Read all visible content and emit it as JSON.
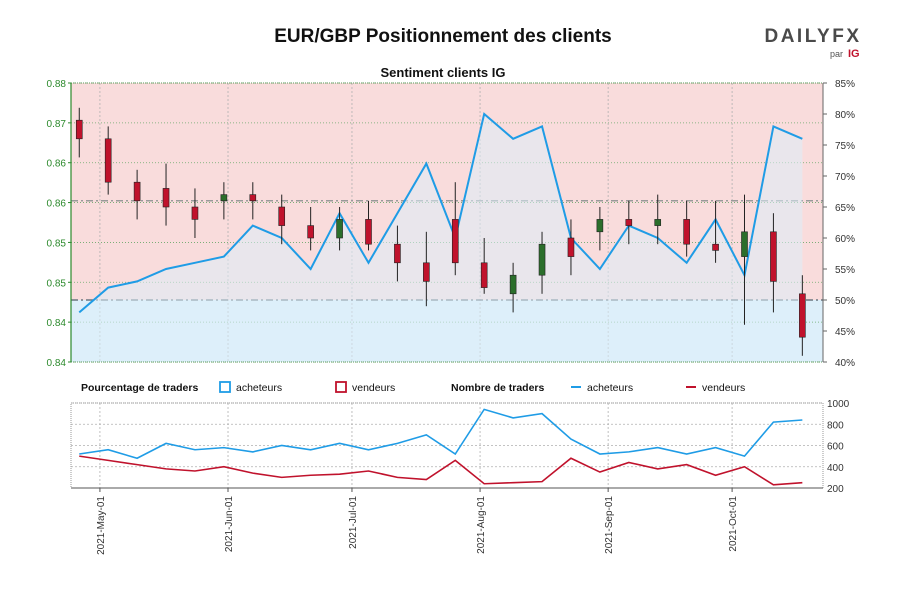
{
  "header": {
    "title": "EUR/GBP Positionnement des clients",
    "brand_name": "DAILYFX",
    "brand_sub": "par",
    "brand_ig": "IG"
  },
  "colors": {
    "price_up": "#2b6e2b",
    "price_down": "#c0122c",
    "buyers": "#1f9ce6",
    "sellers": "#c0122c",
    "short_zone": "#f9dcdc",
    "long_zone": "#ddeffa",
    "axis_green": "#2c8a2c",
    "grid": "#b0b0b0"
  },
  "chart_data": [
    {
      "type": "line",
      "title": "Sentiment clients IG",
      "ylim_price": [
        0.835,
        0.88
      ],
      "y_ticks_price": [
        "0.88",
        "0.87",
        "0.86",
        "0.86",
        "0.85",
        "0.85",
        "0.84",
        "0.84"
      ],
      "ylim_percent": [
        40,
        85
      ],
      "y_ticks_percent": [
        "85%",
        "80%",
        "75%",
        "70%",
        "65%",
        "60%",
        "55%",
        "50%",
        "45%",
        "40%"
      ],
      "reference_levels": {
        "price": 0.861,
        "percent": 50
      },
      "dates": [
        "2021-04-26",
        "2021-05-03",
        "2021-05-10",
        "2021-05-17",
        "2021-05-24",
        "2021-05-31",
        "2021-06-07",
        "2021-06-14",
        "2021-06-21",
        "2021-06-28",
        "2021-07-05",
        "2021-07-12",
        "2021-07-19",
        "2021-07-26",
        "2021-08-02",
        "2021-08-09",
        "2021-08-16",
        "2021-08-23",
        "2021-08-30",
        "2021-09-06",
        "2021-09-13",
        "2021-09-20",
        "2021-09-27",
        "2021-10-04",
        "2021-10-11",
        "2021-10-18"
      ],
      "series": [
        {
          "name": "acheteurs",
          "kind": "percent",
          "values": [
            48,
            52,
            53,
            55,
            56,
            57,
            62,
            60,
            55,
            64,
            56,
            64,
            72,
            60,
            80,
            76,
            78,
            60,
            55,
            62,
            60,
            56,
            63,
            54,
            78,
            76
          ]
        },
        {
          "name": "prix",
          "kind": "price",
          "values": [
            0.874,
            0.871,
            0.861,
            0.864,
            0.858,
            0.862,
            0.862,
            0.859,
            0.856,
            0.857,
            0.858,
            0.853,
            0.848,
            0.861,
            0.849,
            0.848,
            0.853,
            0.85,
            0.858,
            0.857,
            0.858,
            0.856,
            0.857,
            0.859,
            0.848,
            0.839
          ]
        }
      ],
      "candles": {
        "open": [
          0.874,
          0.871,
          0.864,
          0.863,
          0.86,
          0.861,
          0.862,
          0.86,
          0.857,
          0.855,
          0.858,
          0.854,
          0.851,
          0.858,
          0.851,
          0.846,
          0.849,
          0.855,
          0.856,
          0.858,
          0.857,
          0.858,
          0.854,
          0.852,
          0.856,
          0.846
        ],
        "high": [
          0.876,
          0.873,
          0.866,
          0.867,
          0.863,
          0.864,
          0.864,
          0.862,
          0.86,
          0.86,
          0.861,
          0.857,
          0.856,
          0.864,
          0.855,
          0.851,
          0.856,
          0.858,
          0.86,
          0.861,
          0.862,
          0.861,
          0.861,
          0.862,
          0.859,
          0.849
        ],
        "low": [
          0.868,
          0.862,
          0.858,
          0.857,
          0.855,
          0.858,
          0.858,
          0.854,
          0.853,
          0.853,
          0.853,
          0.848,
          0.844,
          0.849,
          0.846,
          0.843,
          0.846,
          0.849,
          0.853,
          0.854,
          0.854,
          0.852,
          0.851,
          0.841,
          0.843,
          0.836
        ],
        "close": [
          0.871,
          0.864,
          0.861,
          0.86,
          0.858,
          0.862,
          0.861,
          0.857,
          0.855,
          0.858,
          0.854,
          0.851,
          0.848,
          0.851,
          0.847,
          0.849,
          0.854,
          0.852,
          0.858,
          0.857,
          0.858,
          0.854,
          0.853,
          0.856,
          0.848,
          0.839
        ]
      },
      "legend": [
        {
          "title": "Pourcentage de traders",
          "items": [
            {
              "label": "acheteurs",
              "style": "box",
              "color": "#1f9ce6"
            },
            {
              "label": "vendeurs",
              "style": "box",
              "color": "#c0122c"
            }
          ]
        },
        {
          "title": "Nombre de traders",
          "items": [
            {
              "label": "acheteurs",
              "style": "line",
              "color": "#1f9ce6"
            },
            {
              "label": "vendeurs",
              "style": "line",
              "color": "#c0122c"
            }
          ]
        }
      ]
    },
    {
      "type": "line",
      "ylim": [
        200,
        1000
      ],
      "y_ticks": [
        "1000",
        "800",
        "600",
        "400",
        "200"
      ],
      "x_tick_labels": [
        "2021-May-01",
        "2021-Jun-01",
        "2021-Jul-01",
        "2021-Aug-01",
        "2021-Sep-01",
        "2021-Oct-01"
      ],
      "x_tick_dates": [
        "2021-05-01",
        "2021-06-01",
        "2021-07-01",
        "2021-08-01",
        "2021-09-01",
        "2021-10-01"
      ],
      "dates": [
        "2021-04-26",
        "2021-05-03",
        "2021-05-10",
        "2021-05-17",
        "2021-05-24",
        "2021-05-31",
        "2021-06-07",
        "2021-06-14",
        "2021-06-21",
        "2021-06-28",
        "2021-07-05",
        "2021-07-12",
        "2021-07-19",
        "2021-07-26",
        "2021-08-02",
        "2021-08-09",
        "2021-08-16",
        "2021-08-23",
        "2021-08-30",
        "2021-09-06",
        "2021-09-13",
        "2021-09-20",
        "2021-09-27",
        "2021-10-04",
        "2021-10-11",
        "2021-10-18"
      ],
      "series": [
        {
          "name": "acheteurs",
          "values": [
            520,
            560,
            480,
            620,
            560,
            580,
            540,
            600,
            560,
            620,
            560,
            620,
            700,
            520,
            940,
            860,
            900,
            660,
            520,
            540,
            580,
            520,
            580,
            500,
            820,
            840
          ]
        },
        {
          "name": "vendeurs",
          "values": [
            500,
            460,
            420,
            380,
            360,
            400,
            340,
            300,
            320,
            330,
            360,
            300,
            280,
            460,
            240,
            250,
            260,
            480,
            350,
            440,
            380,
            420,
            320,
            400,
            230,
            250
          ]
        }
      ]
    }
  ]
}
